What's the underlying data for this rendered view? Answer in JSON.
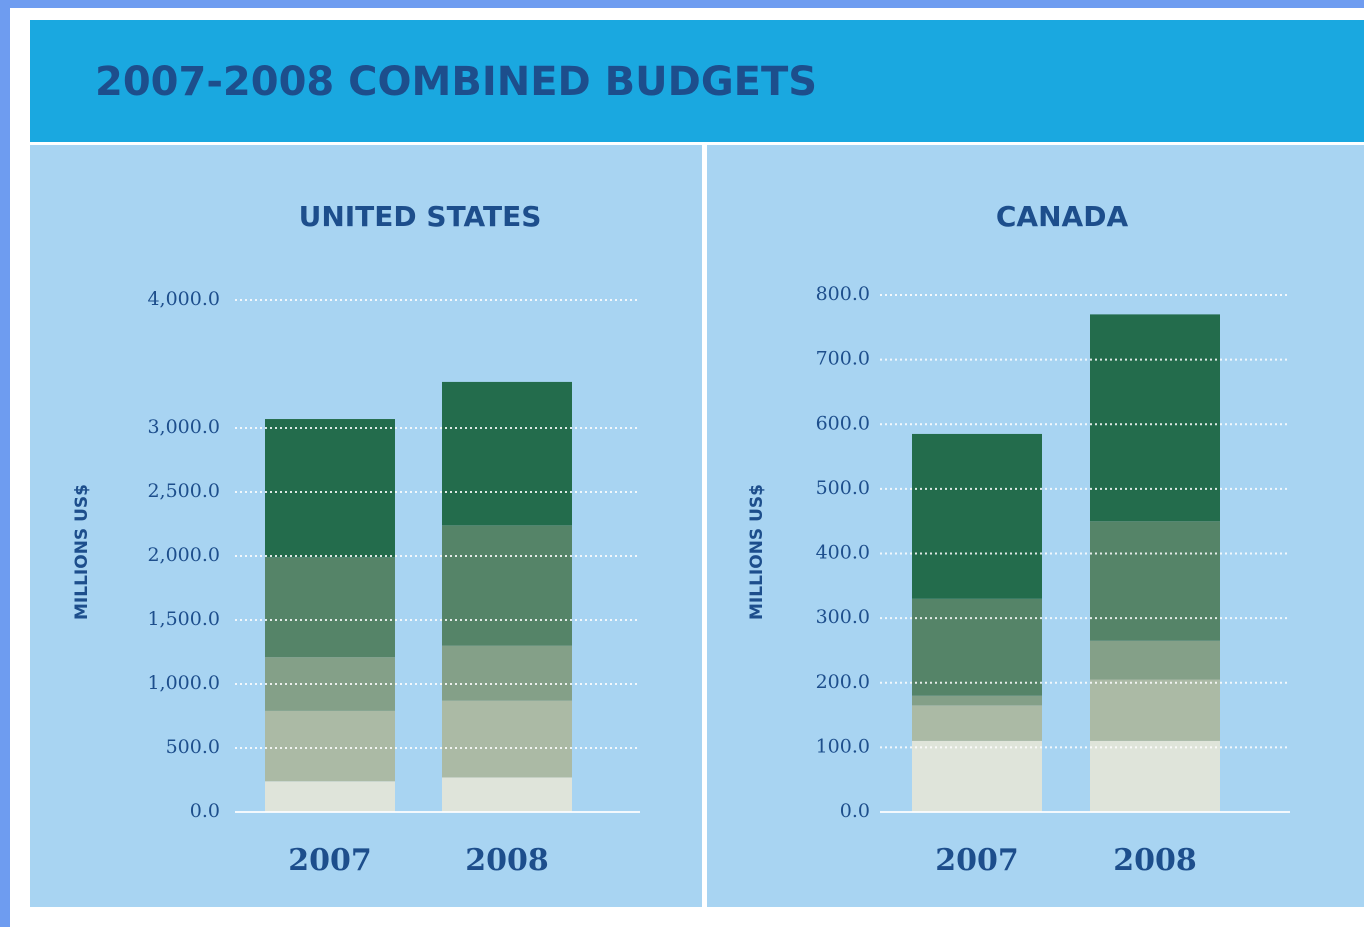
{
  "title": "2007-2008 COMBINED BUDGETS",
  "chart_data": [
    {
      "type": "stacked-bar",
      "title": "UNITED STATES",
      "ylabel": "MILLIONS US$",
      "categories": [
        "2007",
        "2008"
      ],
      "series": [
        {
          "color": "#dfe4da",
          "values": [
            240,
            270
          ]
        },
        {
          "color": "#abbaa5",
          "values": [
            550,
            600
          ]
        },
        {
          "color": "#84a088",
          "values": [
            420,
            430
          ]
        },
        {
          "color": "#558468",
          "values": [
            780,
            940
          ]
        },
        {
          "color": "#236c4c",
          "values": [
            1080,
            1120
          ]
        }
      ],
      "ylim": [
        0,
        4000
      ],
      "yticks": [
        {
          "value": 0,
          "label": "0.0"
        },
        {
          "value": 500,
          "label": "500.0"
        },
        {
          "value": 1000,
          "label": "1,000.0"
        },
        {
          "value": 1500,
          "label": "1,500.0"
        },
        {
          "value": 2000,
          "label": "2,000.0"
        },
        {
          "value": 2500,
          "label": "2,500.0"
        },
        {
          "value": 3000,
          "label": "3,000.0"
        },
        {
          "value": 4000,
          "label": "4,000.0"
        }
      ],
      "grid": true
    },
    {
      "type": "stacked-bar",
      "title": "CANADA",
      "ylabel": "MILLIONS US$",
      "categories": [
        "2007",
        "2008"
      ],
      "series": [
        {
          "color": "#dfe4da",
          "values": [
            110,
            110
          ]
        },
        {
          "color": "#abbaa5",
          "values": [
            55,
            95
          ]
        },
        {
          "color": "#84a088",
          "values": [
            15,
            60
          ]
        },
        {
          "color": "#558468",
          "values": [
            150,
            185
          ]
        },
        {
          "color": "#236c4c",
          "values": [
            255,
            320
          ]
        }
      ],
      "ylim": [
        0,
        800
      ],
      "yticks": [
        {
          "value": 0,
          "label": "0.0"
        },
        {
          "value": 100,
          "label": "100.0"
        },
        {
          "value": 200,
          "label": "200.0"
        },
        {
          "value": 300,
          "label": "300.0"
        },
        {
          "value": 400,
          "label": "400.0"
        },
        {
          "value": 500,
          "label": "500.0"
        },
        {
          "value": 600,
          "label": "600.0"
        },
        {
          "value": 700,
          "label": "700.0"
        },
        {
          "value": 800,
          "label": "800.0"
        }
      ],
      "grid": true
    }
  ]
}
